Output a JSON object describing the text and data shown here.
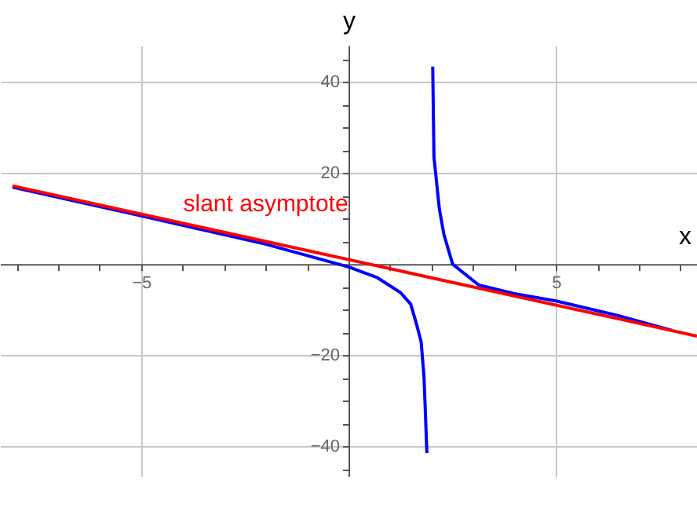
{
  "chart_data": {
    "type": "line",
    "xlabel": "x",
    "ylabel": "y",
    "xlim": [
      -8.4,
      8.4
    ],
    "ylim": [
      -46.5,
      48
    ],
    "xticks": [
      {
        "value": -8,
        "label": null
      },
      {
        "value": -7,
        "label": null
      },
      {
        "value": -6,
        "label": null
      },
      -5,
      {
        "value": -4,
        "label": null
      },
      {
        "value": -3,
        "label": null
      },
      {
        "value": -2,
        "label": null
      },
      {
        "value": -1,
        "label": null
      },
      {
        "value": 1,
        "label": null
      },
      {
        "value": 2,
        "label": null
      },
      {
        "value": 3,
        "label": null
      },
      {
        "value": 4,
        "label": null
      },
      5,
      {
        "value": 6,
        "label": null
      },
      {
        "value": 7,
        "label": null
      },
      {
        "value": 8,
        "label": null
      }
    ],
    "yticks": [
      {
        "value": -45,
        "label": null
      },
      -40,
      {
        "value": -35,
        "label": null
      },
      {
        "value": -30,
        "label": null
      },
      {
        "value": -25,
        "label": null
      },
      -20,
      {
        "value": -15,
        "label": null
      },
      {
        "value": -10,
        "label": null
      },
      {
        "value": -5,
        "label": null
      },
      {
        "value": 5,
        "label": null
      },
      {
        "value": 10,
        "label": null
      },
      {
        "value": 15,
        "label": null
      },
      20,
      {
        "value": 25,
        "label": null
      },
      {
        "value": 30,
        "label": null
      },
      {
        "value": 35,
        "label": null
      },
      40,
      {
        "value": 45,
        "label": null
      }
    ],
    "grid": true,
    "marker": "none",
    "line_style": "solid",
    "series": [
      {
        "color": "#0000ff",
        "x": [
          -8.1,
          -5,
          -2,
          0,
          0.7,
          1.26,
          1.5,
          1.64,
          1.75,
          1.82,
          1.89,
          1.96,
          2.03,
          2.06,
          2.19,
          2.3,
          2.51,
          3.14,
          4,
          5,
          6.5,
          7.81
        ],
        "values": [
          16.9,
          10.6,
          4.4,
          -0.6,
          -3.0,
          -6.3,
          -8.8,
          -13.2,
          -17,
          -24.7,
          -41.5,
          null,
          43.4,
          23.5,
          12.1,
          6.5,
          0,
          -4.6,
          -6.5,
          -8.1,
          -11.3,
          -14.6
        ]
      },
      {
        "name": "slant asymptote",
        "color": "#ff0000",
        "x": [
          -8.1,
          8.4
        ],
        "values": [
          17.2,
          -15.8
        ]
      }
    ]
  }
}
